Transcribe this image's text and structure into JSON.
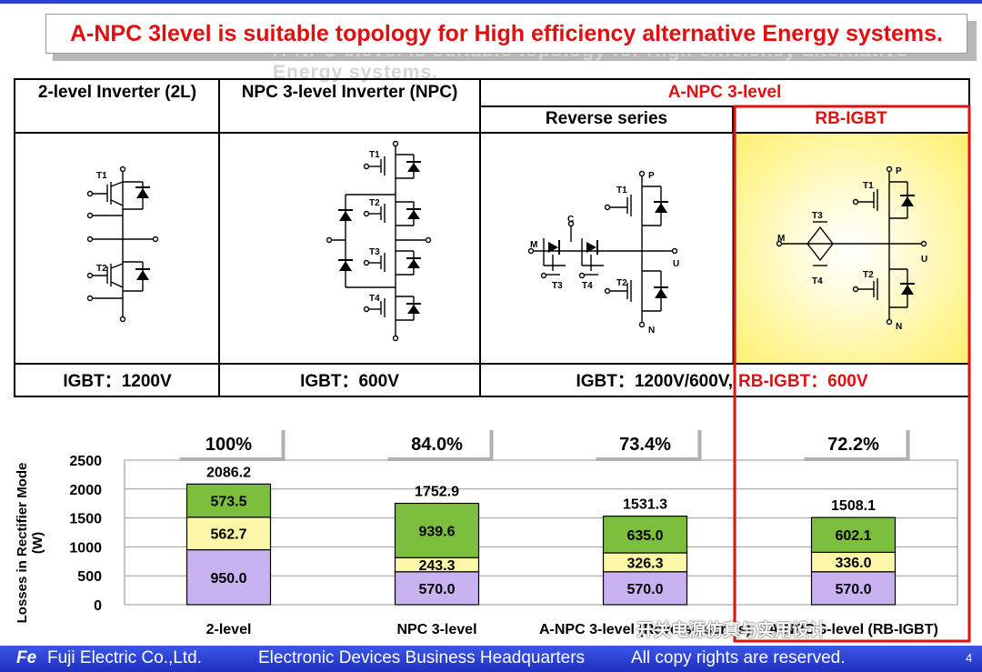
{
  "banner": {
    "title": "A-NPC 3level is suitable topology for High efficiency alternative Energy systems.",
    "ghost": "A-NPC 3level is suitable topology for High efficiency alternative Energy systems."
  },
  "table": {
    "col1": "2-level Inverter (2L)",
    "col2": "NPC 3-level Inverter (NPC)",
    "col3": "A-NPC 3-level",
    "sub1": "Reverse series",
    "sub2": "RB-IGBT",
    "rating1": "IGBT：1200V",
    "rating2": "IGBT：600V",
    "rating3": "IGBT：1200V/600V,",
    "rating4": "RB-IGBT：600V"
  },
  "circuit_labels": {
    "t1": "T1",
    "t2": "T2",
    "t3": "T3",
    "t4": "T4",
    "p": "P",
    "n": "N",
    "u": "U",
    "m": "M",
    "c": "C"
  },
  "chart_data": {
    "type": "bar",
    "stacked": true,
    "categories": [
      "2-level",
      "NPC 3-level",
      "A-NPC 3-level (Reverse series)",
      "A-NPC 3-level (RB-IGBT)"
    ],
    "series": [
      {
        "color": "#c9b2f0",
        "values": [
          950.0,
          570.0,
          570.0,
          570.0
        ]
      },
      {
        "color": "#fbf6a8",
        "values": [
          562.7,
          243.3,
          326.3,
          336.0
        ]
      },
      {
        "color": "#7cbf3e",
        "values": [
          573.5,
          939.6,
          635.0,
          602.1
        ]
      }
    ],
    "totals": [
      2086.2,
      1752.9,
      1531.3,
      1508.1
    ],
    "percent_labels": [
      "100%",
      "84.0%",
      "73.4%",
      "72.2%"
    ],
    "value_labels": [
      [
        "950.0",
        "562.7",
        "573.5"
      ],
      [
        "570.0",
        "243.3",
        "939.6"
      ],
      [
        "570.0",
        "326.3",
        "635.0"
      ],
      [
        "570.0",
        "336.0",
        "602.1"
      ]
    ],
    "total_labels": [
      "2086.2",
      "1752.9",
      "1531.3",
      "1508.1"
    ],
    "category_labels": [
      "2-level",
      "NPC 3-level",
      "A-NPC 3-level (Reverse series)",
      "A-NPC 3-level (RB-IGBT)"
    ],
    "ylabel": "Losses in Rectifier Mode\n(W)",
    "ylim": [
      0,
      2500
    ],
    "yticks": [
      0,
      500,
      1000,
      1500,
      2000,
      2500
    ],
    "ytick_labels": [
      "0",
      "500",
      "1000",
      "1500",
      "2000",
      "2500"
    ],
    "grid": true,
    "highlight_color": "#e01010"
  },
  "footer": {
    "company": "Fuji Electric Co.,Ltd.",
    "division": "Electronic Devices Business Headquarters",
    "rights": "All copy rights are reserved.",
    "page": "4"
  },
  "watermark": "开关电源仿真与实用设计"
}
